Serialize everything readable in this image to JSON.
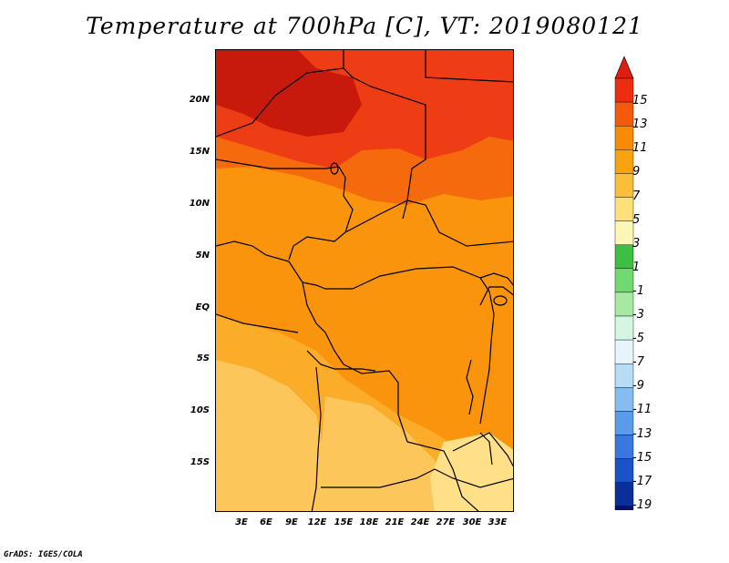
{
  "title": "Temperature at 700hPa [C], VT: 2019080121",
  "credit": "GrADS: IGES/COLA",
  "map": {
    "lon_range": [
      0,
      35
    ],
    "lat_range": [
      -20,
      25
    ],
    "y_ticks": [
      "20N",
      "15N",
      "10N",
      "5N",
      "EQ",
      "5S",
      "10S",
      "15S"
    ],
    "x_ticks": [
      "3E",
      "6E",
      "9E",
      "12E",
      "15E",
      "18E",
      "21E",
      "24E",
      "27E",
      "30E",
      "33E"
    ]
  },
  "colorbar": {
    "labels": [
      "15",
      "13",
      "11",
      "9",
      "7",
      "5",
      "3",
      "1",
      "-1",
      "-3",
      "-5",
      "-7",
      "-9",
      "-11",
      "-13",
      "-15",
      "-17",
      "-19"
    ],
    "colors": [
      "#ee2c10",
      "#f55a0a",
      "#f98a06",
      "#fba210",
      "#fbbe3a",
      "#fde07a",
      "#fdf6b4",
      "#3cbf42",
      "#72d872",
      "#a6eaa2",
      "#d4f6e2",
      "#e8f4fb",
      "#b6dcf6",
      "#86bdf0",
      "#5a9bea",
      "#3a78e0",
      "#1c52c8",
      "#0a2f9a",
      "#0a0e6e"
    ],
    "top_color": "#dd1e10",
    "bottom_color": "#dce6fb"
  },
  "fields": {
    "hot_core": "#c81a0c",
    "very_warm": "#ee3c14",
    "warm": "#f56a0c",
    "medium": "#f9940c",
    "mild": "#fbac28",
    "cool": "#fcc65a",
    "coolest": "#fde088",
    "border_color": "#000000"
  }
}
